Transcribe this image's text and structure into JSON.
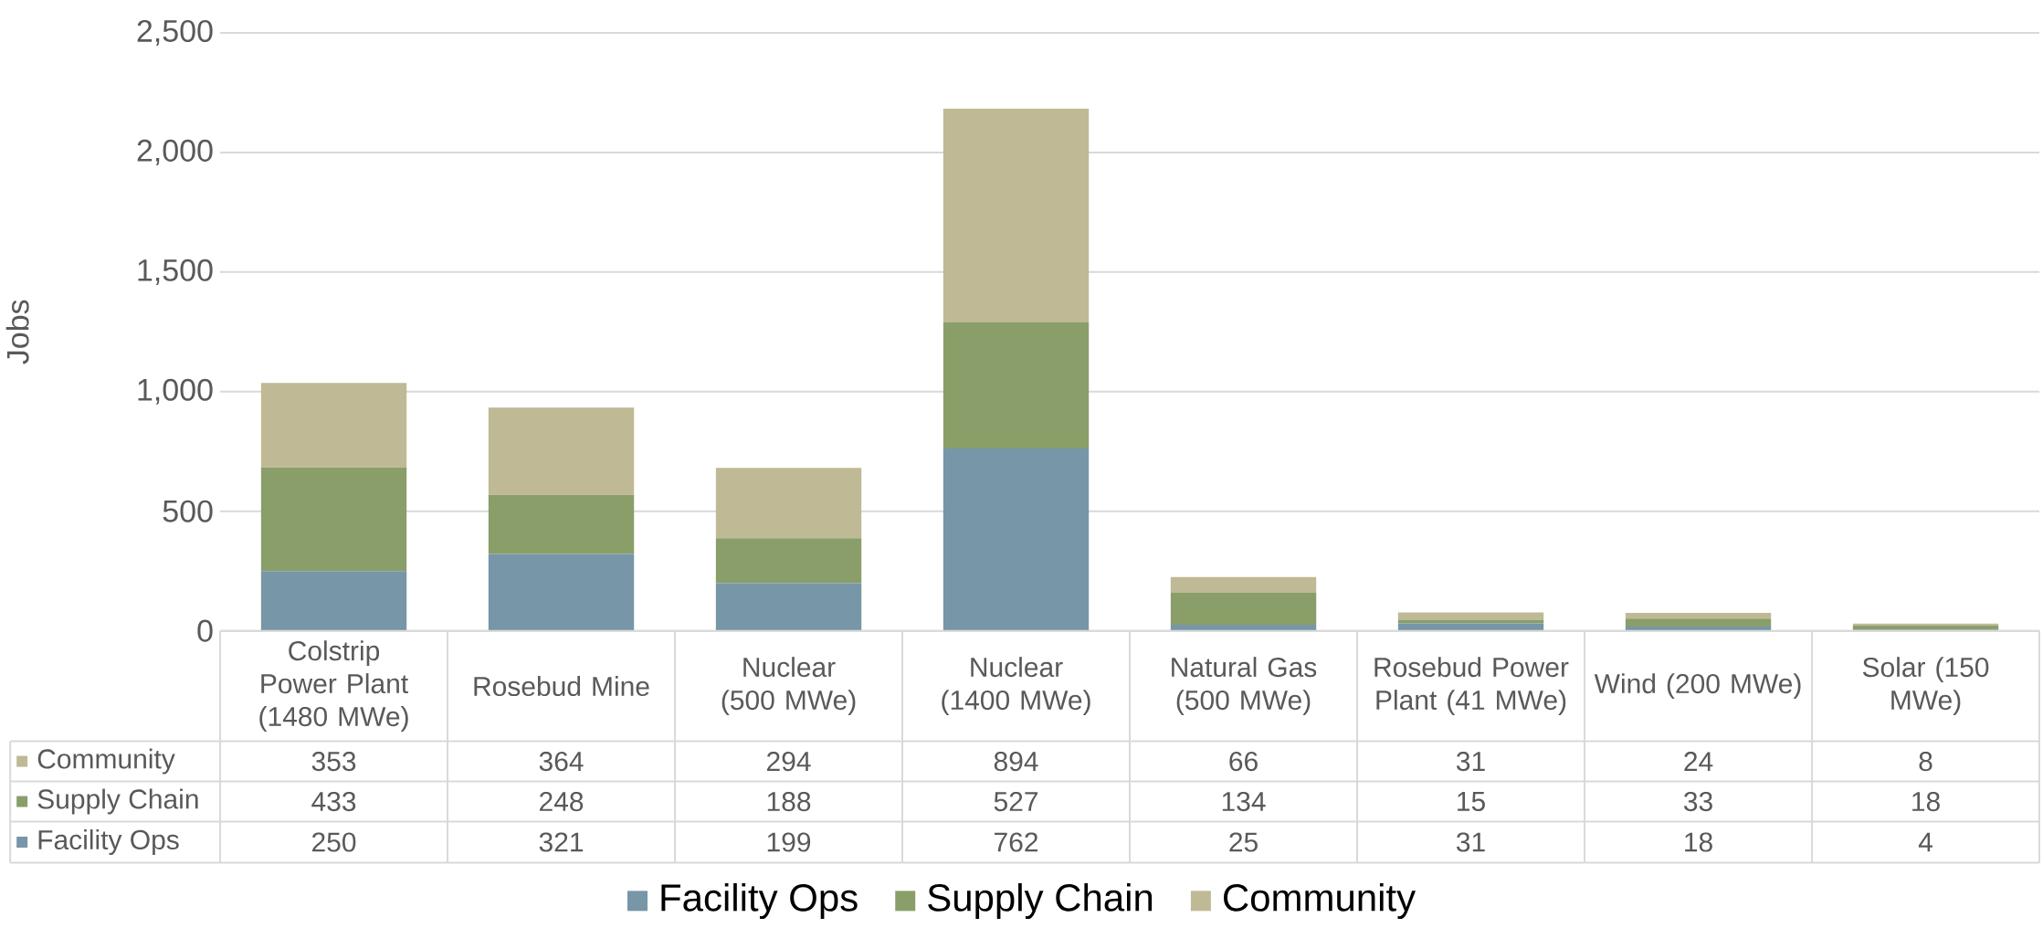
{
  "chart_data": {
    "type": "bar",
    "stacked": true,
    "ylabel": "Jobs",
    "categories": [
      "Colstrip Power Plant (1480 MWe)",
      "Rosebud Mine",
      "Nuclear (500 MWe)",
      "Nuclear (1400 MWe)",
      "Natural Gas (500 MWe)",
      "Rosebud Power Plant (41 MWe)",
      "Wind (200 MWe)",
      "Solar (150 MWe)"
    ],
    "series": [
      {
        "name": "Facility Ops",
        "color": "#7796a7",
        "values": [
          250,
          321,
          199,
          762,
          25,
          31,
          18,
          4
        ]
      },
      {
        "name": "Supply Chain",
        "color": "#8a9e6a",
        "values": [
          433,
          248,
          188,
          527,
          134,
          15,
          33,
          18
        ]
      },
      {
        "name": "Community",
        "color": "#bfb995",
        "values": [
          353,
          364,
          294,
          894,
          66,
          31,
          24,
          8
        ]
      }
    ],
    "ylim": [
      0,
      2500
    ],
    "yticks": [
      0,
      500,
      {
        "value": 1000,
        "label": "1,000"
      },
      {
        "value": 1500,
        "label": "1,500"
      },
      {
        "value": 2000,
        "label": "2,000"
      },
      {
        "value": 2500,
        "label": "2,500"
      }
    ],
    "grid": "y",
    "legend": "bottom",
    "data_labels": true
  }
}
